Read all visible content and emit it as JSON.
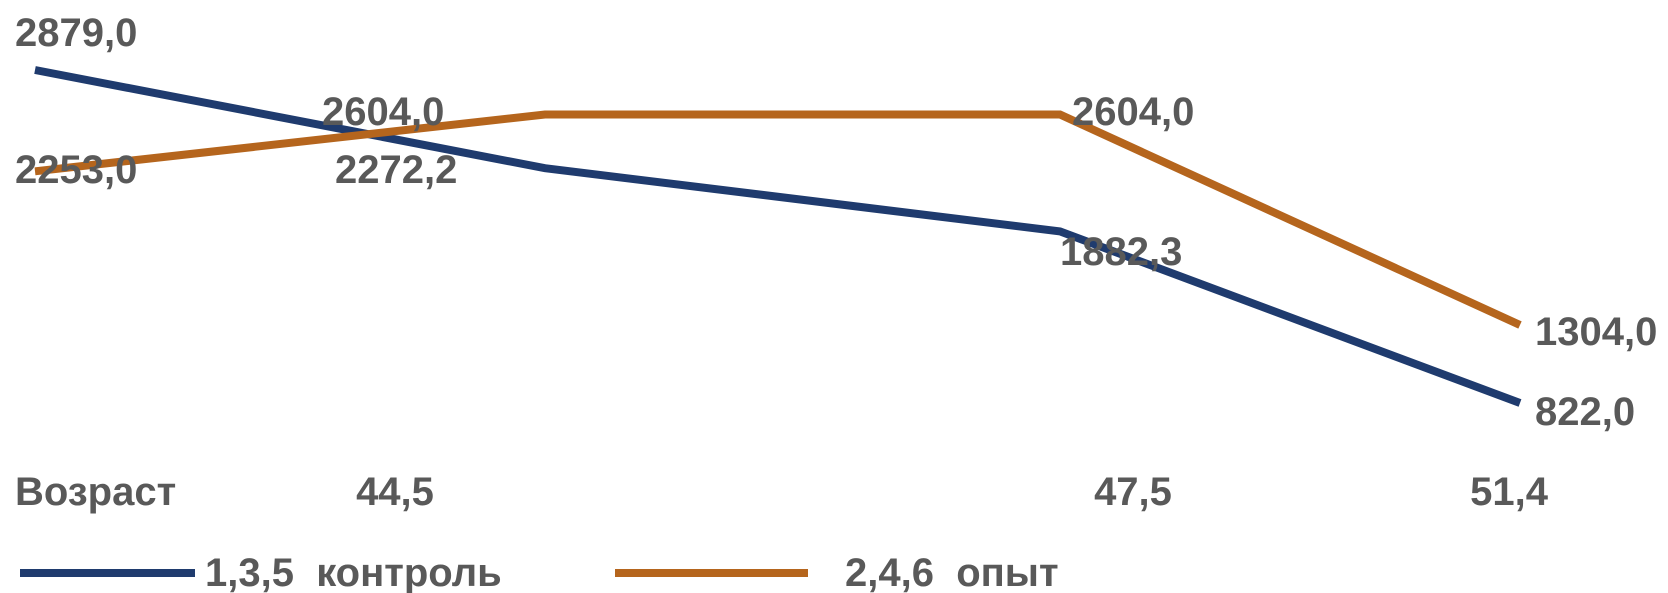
{
  "chart_data": {
    "type": "line",
    "categories": [
      "Возраст",
      "44,5",
      "47,5",
      "51,4"
    ],
    "series": [
      {
        "name": "1,3,5  контроль",
        "color": "#1F3B6E",
        "values": [
          2879.0,
          2272.2,
          1882.3,
          822.0
        ],
        "labels": [
          "2879,0",
          "2272,2",
          "1882,3",
          "822,0"
        ]
      },
      {
        "name": "2,4,6  опыт",
        "color": "#B5651D",
        "values": [
          2253.0,
          2604.0,
          2604.0,
          1304.0
        ],
        "labels": [
          "2253,0",
          "2604,0",
          "2604,0",
          "1304,0"
        ]
      }
    ],
    "title": "",
    "xlabel": "",
    "ylabel": "",
    "grid": false,
    "legend": "bottom"
  }
}
